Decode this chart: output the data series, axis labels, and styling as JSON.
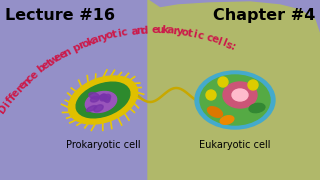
{
  "bg_left_color": "#9490c8",
  "bg_right_color": "#b0b86a",
  "title_left": "Lecture #16",
  "title_right": "Chapter #4",
  "title_color": "#000000",
  "title_fontsize": 11.5,
  "curved_text": "Difference between prokaryotic and eukaryotic cells:",
  "curved_text_color": "#cc1a4a",
  "curved_text_fontsize": 7.5,
  "label_left": "Prokaryotic cell",
  "label_right": "Eukaryotic cell",
  "label_color": "#000000",
  "label_fontsize": 7,
  "figsize": [
    3.2,
    1.8
  ],
  "dpi": 100
}
